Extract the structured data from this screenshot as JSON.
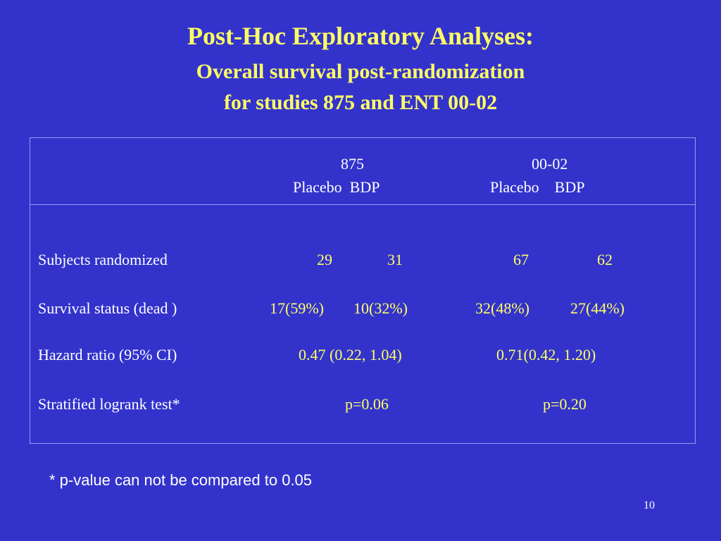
{
  "slide": {
    "title": "Post-Hoc Exploratory Analyses:",
    "subtitle_line1": "Overall survival post-randomization",
    "subtitle_line2": "for studies 875 and ENT 00-02"
  },
  "table": {
    "study1": {
      "name": "875",
      "sub": "Placebo  BDP"
    },
    "study2": {
      "name": "00-02",
      "sub": "Placebo    BDP"
    },
    "rows": [
      {
        "label": "Subjects randomized",
        "s1_placebo": "29",
        "s1_bdp": "31",
        "s2_placebo": "67",
        "s2_bdp": "62"
      },
      {
        "label": "Survival status (dead )",
        "s1_placebo": "17(59%)",
        "s1_bdp": "10(32%)",
        "s2_placebo": "32(48%)",
        "s2_bdp": "27(44%)"
      },
      {
        "label": "Hazard ratio (95% CI)",
        "s1": "0.47 (0.22, 1.04)",
        "s2": "0.71(0.42, 1.20)"
      },
      {
        "label": "Stratified logrank test*",
        "s1": "p=0.06",
        "s2": "p=0.20"
      }
    ]
  },
  "footnote": "* p-value can not be compared to 0.05",
  "page_number": "10"
}
